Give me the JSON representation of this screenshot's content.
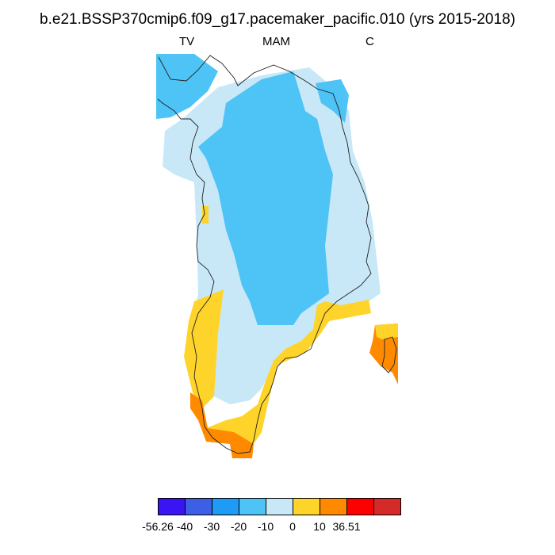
{
  "title": "b.e21.BSSP370cmip6.f09_g17.pacemaker_pacific.010 (yrs 2015-2018)",
  "left_label": "TV",
  "center_label": "MAM",
  "right_label": "C",
  "colorbar": {
    "colors": [
      "#3a14f2",
      "#3c5fe6",
      "#1e9bf5",
      "#4ec3f5",
      "#c8e8f8",
      "#fed42a",
      "#ff8a00",
      "#ff0000",
      "#d52a2a"
    ],
    "labels": [
      "-56.26",
      "-40",
      "-30",
      "-20",
      "-10",
      "0",
      "10",
      "36.51"
    ]
  },
  "map_description_colors": {
    "interior": "#4ec3f5",
    "margin": "#c8e8f8",
    "warm": "#fed42a",
    "hot": "#ff8a00"
  }
}
